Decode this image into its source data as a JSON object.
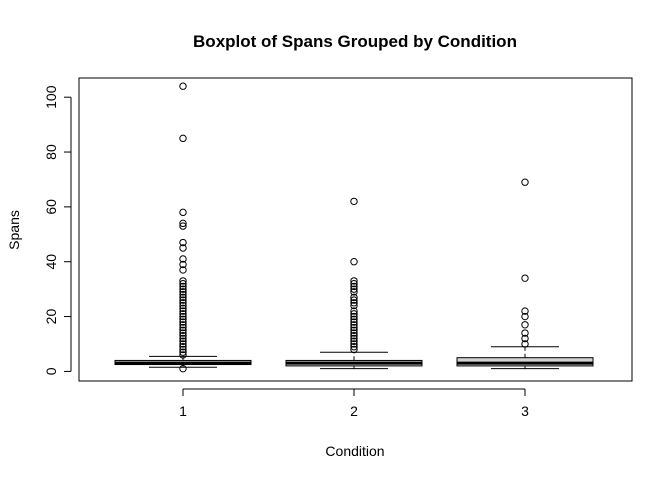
{
  "chart_data": {
    "type": "boxplot",
    "title": "Boxplot of Spans Grouped by Condition",
    "xlabel": "Condition",
    "ylabel": "Spans",
    "categories": [
      "1",
      "2",
      "3"
    ],
    "yticks": [
      "0",
      "20",
      "40",
      "60",
      "80",
      "100"
    ],
    "ylim": [
      -3.5,
      107
    ],
    "box_fill": "#d3d3d3",
    "series": [
      {
        "category": "1",
        "min": 1.5,
        "q1": 2.5,
        "median": 3,
        "q3": 4,
        "max": 5.5,
        "outliers": [
          1,
          6,
          7,
          8,
          9,
          10,
          11,
          12,
          13,
          14,
          15,
          16,
          17,
          18,
          19,
          20,
          21,
          22,
          23,
          24,
          25,
          26,
          27,
          28,
          29,
          30,
          31,
          32,
          33,
          37,
          39,
          41,
          45,
          47,
          53,
          54,
          58,
          85,
          104
        ]
      },
      {
        "category": "2",
        "min": 1,
        "q1": 2,
        "median": 3,
        "q3": 4,
        "max": 7,
        "outliers": [
          8,
          9,
          10,
          11,
          12,
          13,
          14,
          15,
          16,
          17,
          18,
          19,
          20,
          21,
          22,
          24,
          25,
          26,
          27,
          29,
          30,
          31,
          32,
          33,
          40,
          62
        ]
      },
      {
        "category": "3",
        "min": 1,
        "q1": 2,
        "median": 3,
        "q3": 5,
        "max": 9,
        "outliers": [
          10,
          12,
          14,
          17,
          20,
          22,
          34,
          69
        ]
      }
    ]
  }
}
